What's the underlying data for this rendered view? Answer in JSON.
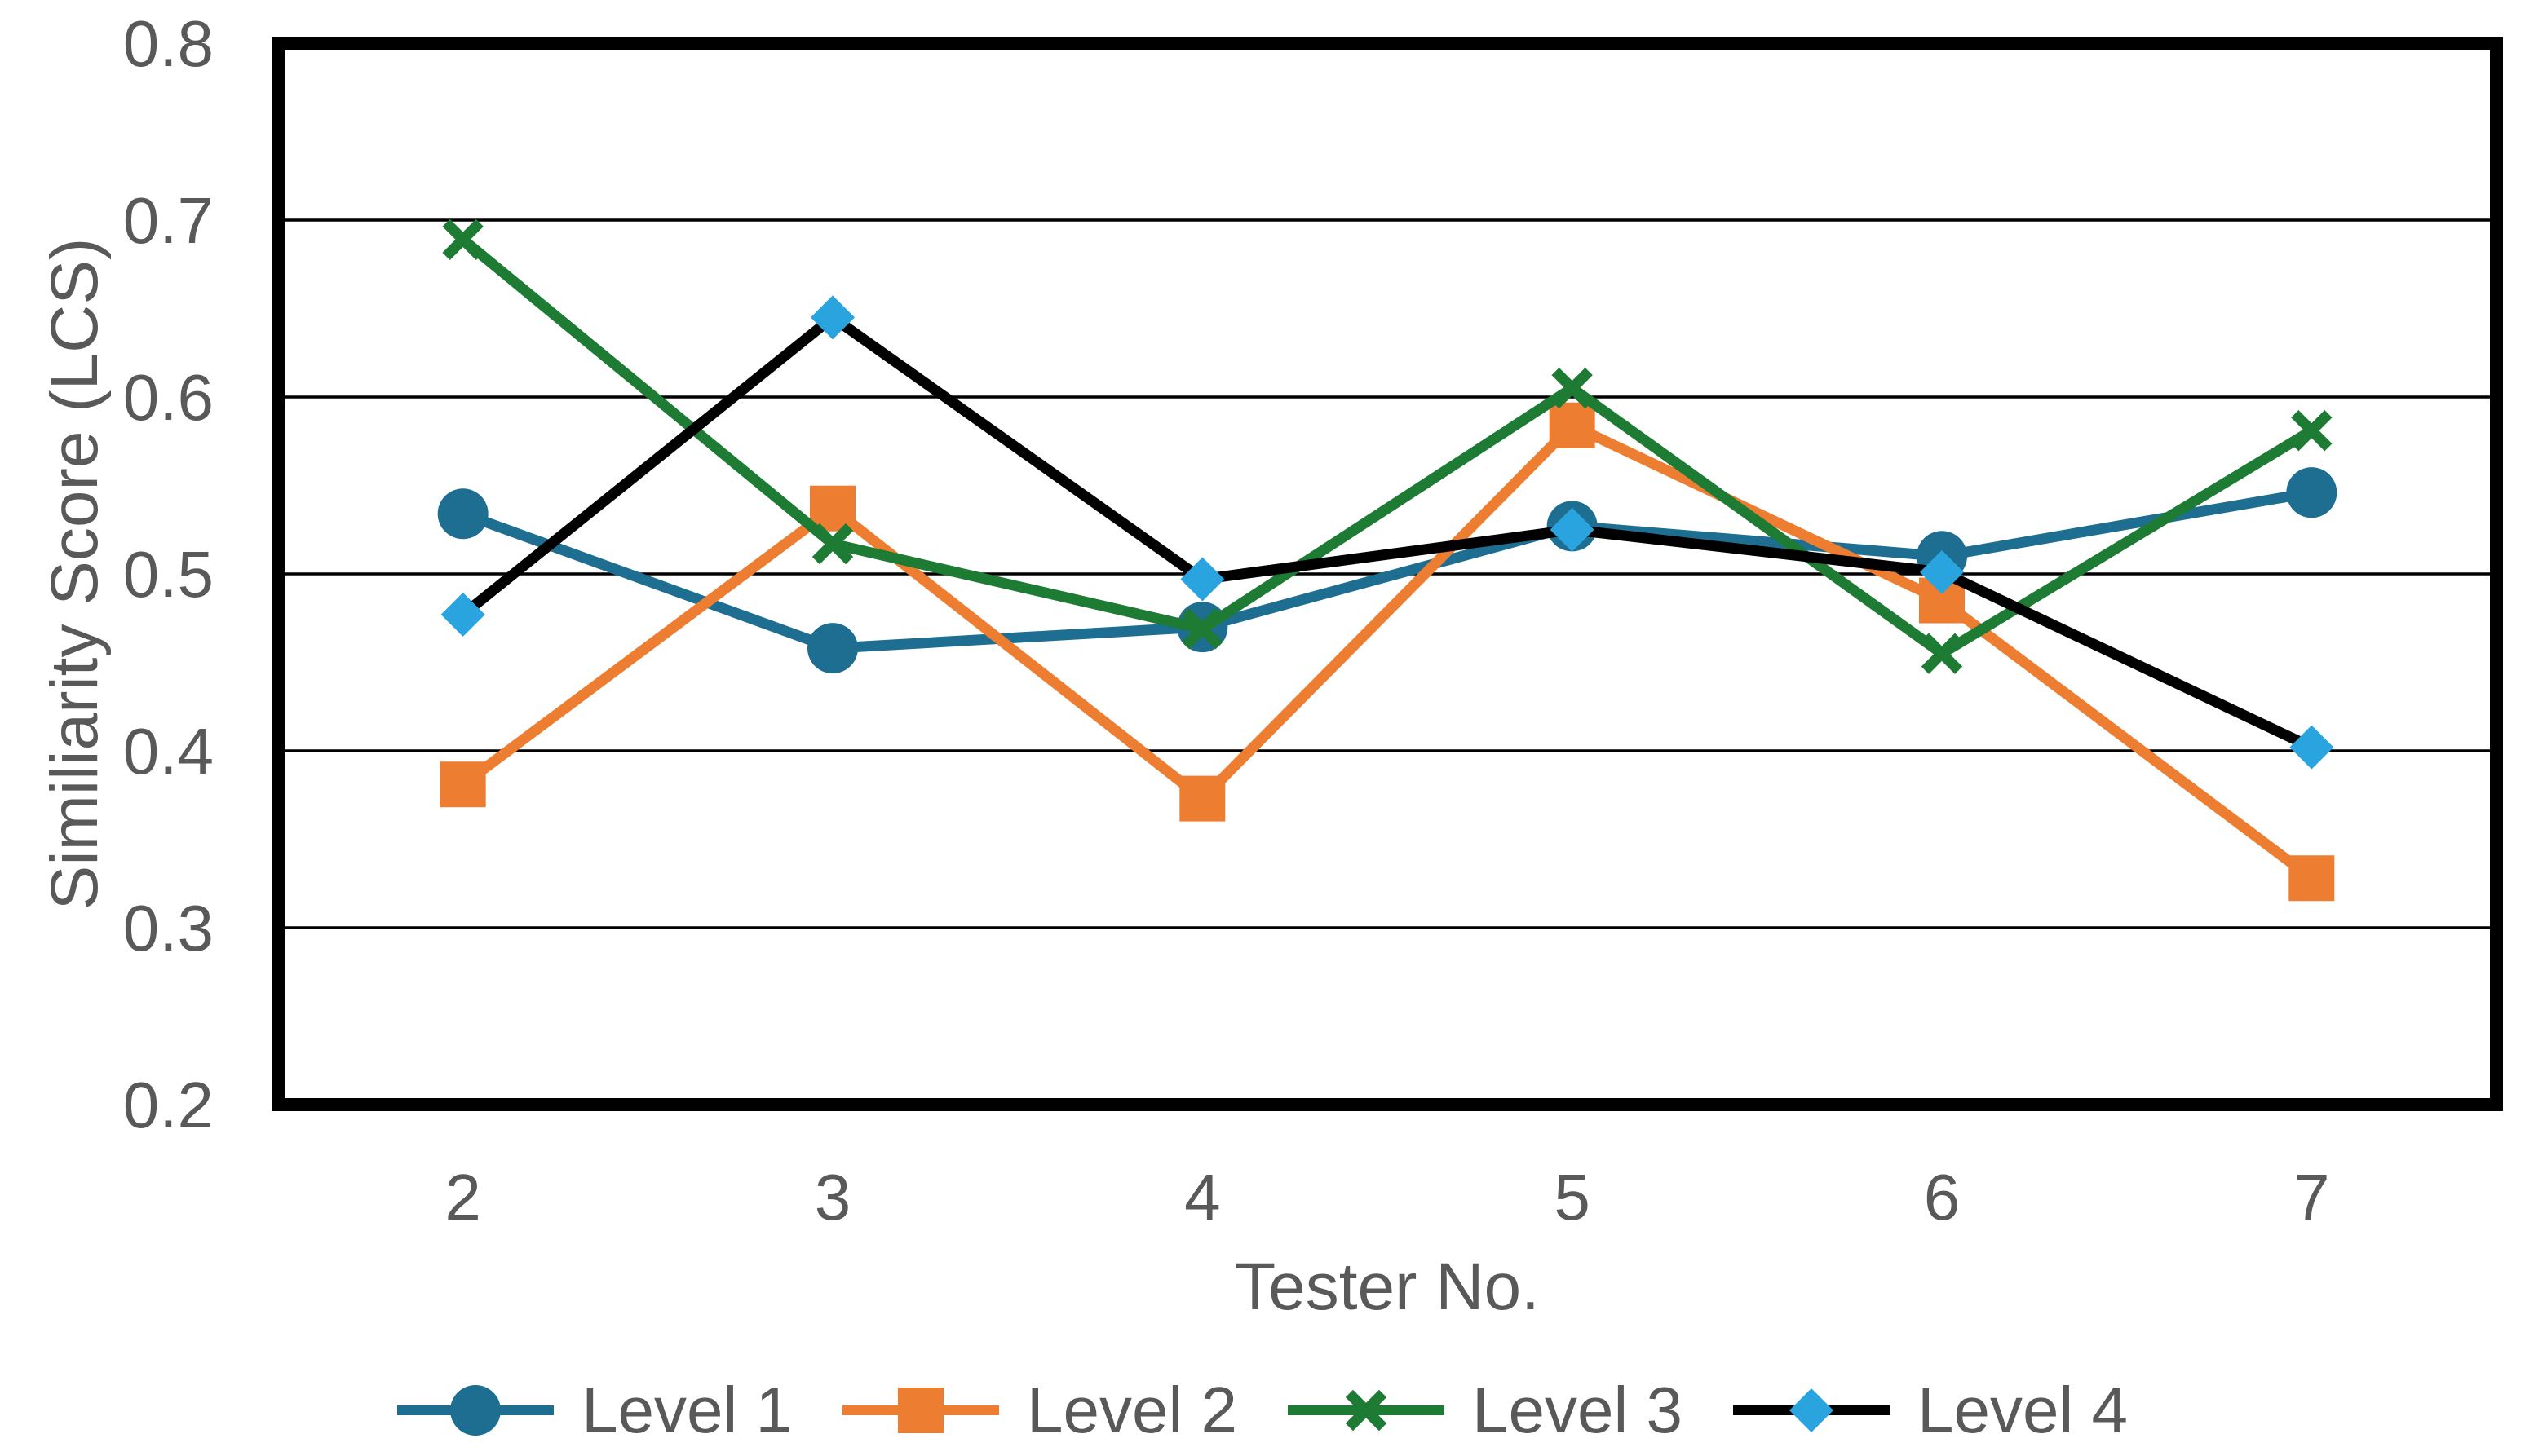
{
  "chart_data": {
    "type": "line",
    "title": "",
    "xlabel": "Tester No.",
    "ylabel": "Similiarity Score (LCS)",
    "categories": [
      2,
      3,
      4,
      5,
      6,
      7
    ],
    "series": [
      {
        "name": "Level 1",
        "marker": "circle",
        "color": "#1E6E91",
        "marker_color": "#1E6E91",
        "values": [
          0.534,
          0.458,
          0.47,
          0.527,
          0.51,
          0.546
        ]
      },
      {
        "name": "Level 2",
        "marker": "square",
        "color": "#ED7D31",
        "marker_color": "#ED7D31",
        "values": [
          0.381,
          0.537,
          0.373,
          0.584,
          0.485,
          0.328
        ]
      },
      {
        "name": "Level 3",
        "marker": "x",
        "color": "#1E7B34",
        "marker_color": "#1E7B34",
        "values": [
          0.689,
          0.517,
          0.469,
          0.605,
          0.455,
          0.581
        ]
      },
      {
        "name": "Level 4",
        "marker": "diamond",
        "color": "#000000",
        "marker_color": "#29A4DE",
        "values": [
          0.477,
          0.645,
          0.497,
          0.525,
          0.501,
          0.402
        ]
      }
    ],
    "ylim": [
      0.2,
      0.8
    ],
    "yticks": [
      "0.8",
      "0.7",
      "0.6",
      "0.5",
      "0.4",
      "0.3",
      "0.2"
    ],
    "grid": true,
    "legend_position": "bottom",
    "axis_text_color": "#595959",
    "gridline_color": "#000000",
    "plot_border_color": "#000000"
  }
}
